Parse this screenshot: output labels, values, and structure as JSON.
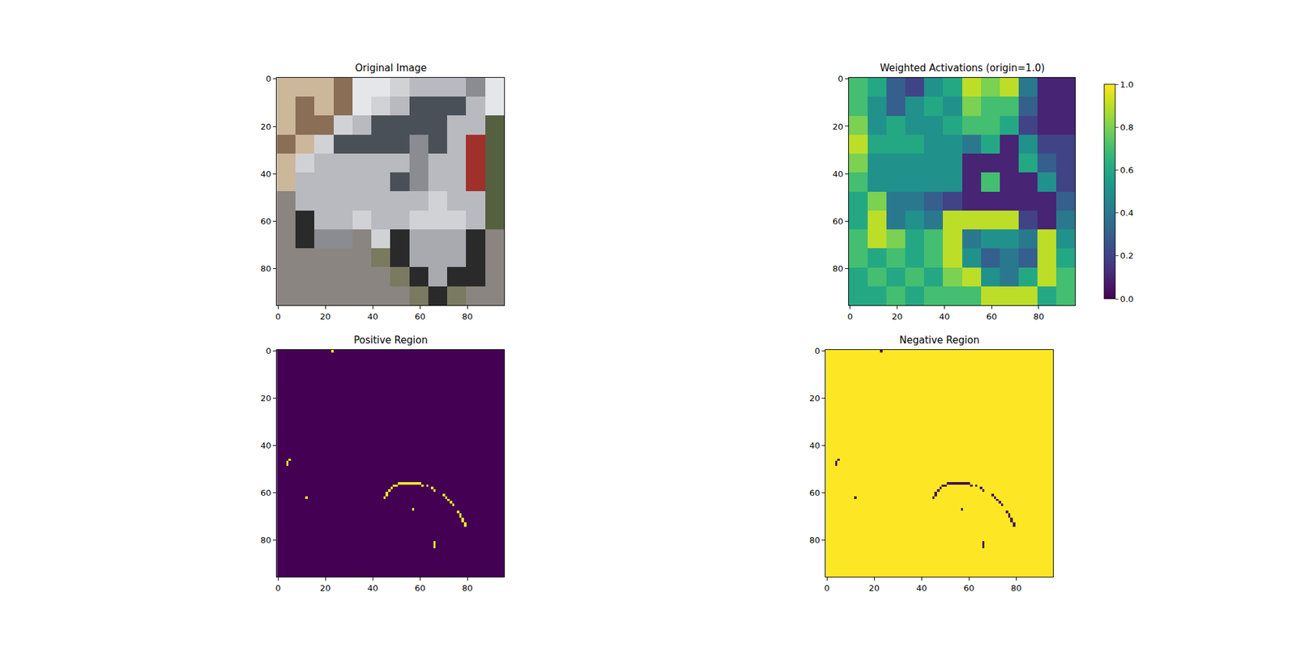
{
  "chart_data": [
    {
      "type": "image",
      "title": "Original Image",
      "xlim": [
        -0.5,
        95.5
      ],
      "ylim": [
        95.5,
        -0.5
      ],
      "xticks": [
        0,
        20,
        40,
        60,
        80
      ],
      "yticks": [
        0,
        20,
        40,
        60,
        80
      ],
      "pixels": [
        [
          "#cdb79a",
          "#cdb79a",
          "#cdb79a",
          "#8a6e55",
          "#e4e6ea",
          "#e4e6ea",
          "#d0d2d6",
          "#b8bac0",
          "#b8bac0",
          "#b8bac0",
          "#8a8c92",
          "#e4e6ea"
        ],
        [
          "#cdb79a",
          "#8a6e55",
          "#cdb79a",
          "#8a6e55",
          "#e4e6ea",
          "#d0d2d6",
          "#b8bac0",
          "#4a5058",
          "#4a5058",
          "#4a5058",
          "#b8bac0",
          "#e4e6ea"
        ],
        [
          "#cdb79a",
          "#8a6e55",
          "#8a6e55",
          "#d0d2d6",
          "#b8bac0",
          "#4a5058",
          "#4a5058",
          "#4a5058",
          "#4a5058",
          "#b8bac0",
          "#b8bac0",
          "#556040"
        ],
        [
          "#8a6e55",
          "#cdb79a",
          "#d0d2d6",
          "#4a5058",
          "#4a5058",
          "#4a5058",
          "#4a5058",
          "#8a8c92",
          "#4a5058",
          "#b8bac0",
          "#a0302a",
          "#556040"
        ],
        [
          "#cdb79a",
          "#d0d2d6",
          "#b8bac0",
          "#b8bac0",
          "#b8bac0",
          "#b8bac0",
          "#b8bac0",
          "#8a8c92",
          "#b8bac0",
          "#b8bac0",
          "#a0302a",
          "#556040"
        ],
        [
          "#cdb79a",
          "#b8bac0",
          "#b8bac0",
          "#b8bac0",
          "#b8bac0",
          "#b8bac0",
          "#4a5058",
          "#8a8c92",
          "#b8bac0",
          "#b8bac0",
          "#a0302a",
          "#556040"
        ],
        [
          "#8a8580",
          "#b8bac0",
          "#b8bac0",
          "#b8bac0",
          "#b8bac0",
          "#b8bac0",
          "#b8bac0",
          "#b8bac0",
          "#d0d2d6",
          "#b8bac0",
          "#b8bac0",
          "#556040"
        ],
        [
          "#8a8580",
          "#2a2a2a",
          "#b8bac0",
          "#b8bac0",
          "#d0d2d6",
          "#b8bac0",
          "#b8bac0",
          "#d0d2d6",
          "#d0d2d6",
          "#d0d2d6",
          "#b8bac0",
          "#556040"
        ],
        [
          "#8a8580",
          "#2a2a2a",
          "#8a8c92",
          "#8a8c92",
          "#8a8580",
          "#d0d2d6",
          "#2a2a2a",
          "#a8aab0",
          "#a8aab0",
          "#a8aab0",
          "#2a2a2a",
          "#8a8580"
        ],
        [
          "#8a8580",
          "#8a8580",
          "#8a8580",
          "#8a8580",
          "#8a8580",
          "#7a7a60",
          "#2a2a2a",
          "#a8aab0",
          "#a8aab0",
          "#a8aab0",
          "#2a2a2a",
          "#8a8580"
        ],
        [
          "#8a8580",
          "#8a8580",
          "#8a8580",
          "#8a8580",
          "#8a8580",
          "#8a8580",
          "#7a7a60",
          "#2a2a2a",
          "#a8aab0",
          "#2a2a2a",
          "#2a2a2a",
          "#8a8580"
        ],
        [
          "#8a8580",
          "#8a8580",
          "#8a8580",
          "#8a8580",
          "#8a8580",
          "#8a8580",
          "#8a8580",
          "#7a7a60",
          "#2a2a2a",
          "#7a7a60",
          "#8a8580",
          "#8a8580"
        ]
      ]
    },
    {
      "type": "heatmap",
      "title": "Weighted Activations (origin=1.0)",
      "xlim": [
        -0.5,
        95.5
      ],
      "ylim": [
        95.5,
        -0.5
      ],
      "xticks": [
        0,
        20,
        40,
        60,
        80
      ],
      "yticks": [
        0,
        20,
        40,
        60,
        80
      ],
      "cells": [
        [
          0.7,
          0.6,
          0.3,
          0.2,
          0.5,
          0.6,
          0.9,
          0.8,
          0.9,
          0.4,
          0.1,
          0.1
        ],
        [
          0.7,
          0.5,
          0.3,
          0.5,
          0.6,
          0.5,
          0.8,
          0.7,
          0.7,
          0.3,
          0.1,
          0.1
        ],
        [
          0.8,
          0.5,
          0.6,
          0.5,
          0.5,
          0.6,
          0.7,
          0.7,
          0.6,
          0.2,
          0.1,
          0.1
        ],
        [
          0.9,
          0.6,
          0.6,
          0.6,
          0.5,
          0.5,
          0.4,
          0.6,
          0.1,
          0.5,
          0.2,
          0.2
        ],
        [
          0.8,
          0.5,
          0.5,
          0.5,
          0.5,
          0.5,
          0.1,
          0.1,
          0.1,
          0.6,
          0.3,
          0.2
        ],
        [
          0.7,
          0.5,
          0.5,
          0.5,
          0.5,
          0.5,
          0.1,
          0.7,
          0.1,
          0.1,
          0.5,
          0.2
        ],
        [
          0.6,
          0.8,
          0.4,
          0.4,
          0.3,
          0.2,
          0.1,
          0.1,
          0.1,
          0.1,
          0.1,
          0.3
        ],
        [
          0.6,
          0.9,
          0.4,
          0.5,
          0.4,
          0.9,
          0.9,
          0.9,
          0.9,
          0.2,
          0.1,
          0.4
        ],
        [
          0.7,
          0.9,
          0.8,
          0.6,
          0.7,
          0.9,
          0.4,
          0.5,
          0.5,
          0.4,
          0.9,
          0.5
        ],
        [
          0.7,
          0.6,
          0.7,
          0.6,
          0.7,
          0.9,
          0.5,
          0.3,
          0.4,
          0.3,
          0.9,
          0.6
        ],
        [
          0.6,
          0.7,
          0.6,
          0.7,
          0.6,
          0.8,
          0.9,
          0.5,
          0.4,
          0.6,
          0.9,
          0.7
        ],
        [
          0.6,
          0.6,
          0.7,
          0.6,
          0.7,
          0.7,
          0.7,
          0.9,
          0.9,
          0.9,
          0.6,
          0.7
        ]
      ],
      "colorbar": {
        "range": [
          0,
          1
        ],
        "ticks": [
          {
            "value": 0,
            "label": "0.0"
          },
          {
            "value": 0.2,
            "label": "0.2"
          },
          {
            "value": 0.4,
            "label": "0.4"
          },
          {
            "value": 0.6,
            "label": "0.6"
          },
          {
            "value": 0.8,
            "label": "0.8"
          },
          {
            "value": 1,
            "label": "1.0"
          }
        ]
      }
    },
    {
      "type": "mask",
      "title": "Positive Region",
      "xlim": [
        -0.5,
        95.5
      ],
      "ylim": [
        95.5,
        -0.5
      ],
      "xticks": [
        0,
        20,
        40,
        60,
        80
      ],
      "yticks": [
        0,
        20,
        40,
        60,
        80
      ],
      "shape": [
        96,
        96
      ],
      "colors": [
        "#440154",
        "#fde725"
      ],
      "pixels_on": [
        [
          23,
          0
        ],
        [
          5,
          46
        ],
        [
          4,
          47
        ],
        [
          4,
          48
        ],
        [
          12,
          62
        ],
        [
          45,
          62
        ],
        [
          46,
          61
        ],
        [
          46,
          60
        ],
        [
          47,
          59
        ],
        [
          48,
          58
        ],
        [
          49,
          57
        ],
        [
          50,
          57
        ],
        [
          51,
          56
        ],
        [
          52,
          56
        ],
        [
          53,
          56
        ],
        [
          54,
          56
        ],
        [
          55,
          56
        ],
        [
          56,
          56
        ],
        [
          57,
          56
        ],
        [
          58,
          56
        ],
        [
          59,
          56
        ],
        [
          60,
          56
        ],
        [
          61,
          57
        ],
        [
          63,
          57
        ],
        [
          65,
          58
        ],
        [
          66,
          59
        ],
        [
          70,
          61
        ],
        [
          71,
          62
        ],
        [
          72,
          63
        ],
        [
          73,
          64
        ],
        [
          74,
          65
        ],
        [
          76,
          68
        ],
        [
          77,
          69
        ],
        [
          77,
          70
        ],
        [
          78,
          71
        ],
        [
          78,
          72
        ],
        [
          79,
          73
        ],
        [
          79,
          74
        ],
        [
          57,
          67
        ],
        [
          66,
          81
        ],
        [
          66,
          82
        ],
        [
          66,
          83
        ]
      ]
    },
    {
      "type": "mask",
      "title": "Negative Region",
      "xlim": [
        -0.5,
        95.5
      ],
      "ylim": [
        95.5,
        -0.5
      ],
      "xticks": [
        0,
        20,
        40,
        60,
        80
      ],
      "yticks": [
        0,
        20,
        40,
        60,
        80
      ],
      "shape": [
        96,
        96
      ],
      "colors": [
        "#440154",
        "#fde725"
      ],
      "pixels_off": [
        [
          23,
          0
        ],
        [
          5,
          46
        ],
        [
          4,
          47
        ],
        [
          4,
          48
        ],
        [
          12,
          62
        ],
        [
          45,
          62
        ],
        [
          46,
          61
        ],
        [
          46,
          60
        ],
        [
          47,
          59
        ],
        [
          48,
          58
        ],
        [
          49,
          57
        ],
        [
          50,
          57
        ],
        [
          51,
          56
        ],
        [
          52,
          56
        ],
        [
          53,
          56
        ],
        [
          54,
          56
        ],
        [
          55,
          56
        ],
        [
          56,
          56
        ],
        [
          57,
          56
        ],
        [
          58,
          56
        ],
        [
          59,
          56
        ],
        [
          60,
          56
        ],
        [
          61,
          57
        ],
        [
          63,
          57
        ],
        [
          65,
          58
        ],
        [
          66,
          59
        ],
        [
          70,
          61
        ],
        [
          71,
          62
        ],
        [
          72,
          63
        ],
        [
          73,
          64
        ],
        [
          74,
          65
        ],
        [
          76,
          68
        ],
        [
          77,
          69
        ],
        [
          77,
          70
        ],
        [
          78,
          71
        ],
        [
          78,
          72
        ],
        [
          79,
          73
        ],
        [
          79,
          74
        ],
        [
          57,
          67
        ],
        [
          66,
          81
        ],
        [
          66,
          82
        ],
        [
          66,
          83
        ]
      ]
    }
  ]
}
